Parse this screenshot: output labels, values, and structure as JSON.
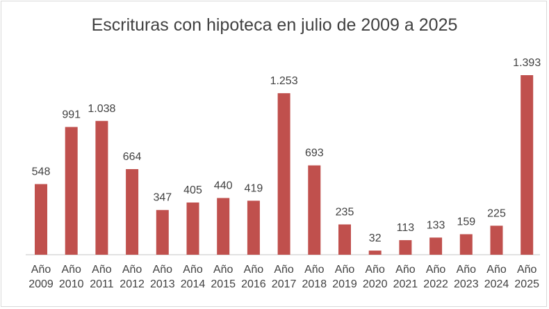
{
  "chart_data": {
    "type": "bar",
    "title": "Escrituras con hipoteca en julio de 2009 a 2025",
    "categories": [
      "Año 2009",
      "Año 2010",
      "Año 2011",
      "Año 2012",
      "Año 2013",
      "Año 2014",
      "Año 2015",
      "Año 2016",
      "Año 2017",
      "Año 2018",
      "Año 2019",
      "Año 2020",
      "Año 2021",
      "Año 2022",
      "Año 2023",
      "Año 2024",
      "Año 2025"
    ],
    "values": [
      548,
      991,
      1038,
      664,
      347,
      405,
      440,
      419,
      1253,
      693,
      235,
      32,
      113,
      133,
      159,
      225,
      1393
    ],
    "data_labels": [
      "548",
      "991",
      "1.038",
      "664",
      "347",
      "405",
      "440",
      "419",
      "1.253",
      "693",
      "235",
      "32",
      "113",
      "133",
      "159",
      "225",
      "1.393"
    ],
    "xlabel": "",
    "ylabel": "",
    "grid": false,
    "legend": "none",
    "bar_color": "#c0504d",
    "axis_color": "#d9d9d9"
  }
}
